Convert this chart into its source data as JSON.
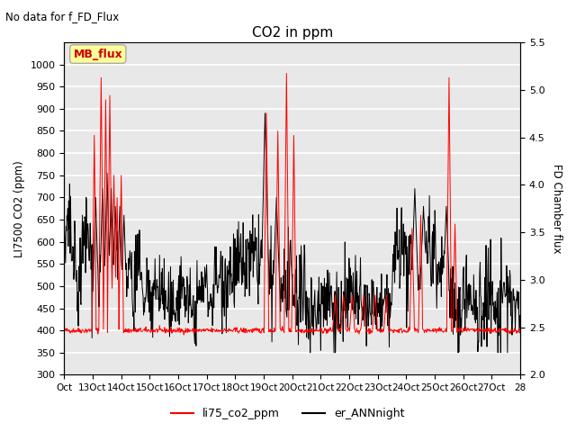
{
  "title": "CO2 in ppm",
  "subtitle": "No data for f_FD_Flux",
  "ylabel_left": "LI7500 CO2 (ppm)",
  "ylabel_right": "FD Chamber flux",
  "ylim_left": [
    300,
    1050
  ],
  "ylim_right": [
    2.0,
    5.5
  ],
  "yticks_left": [
    300,
    350,
    400,
    450,
    500,
    550,
    600,
    650,
    700,
    750,
    800,
    850,
    900,
    950,
    1000
  ],
  "xtick_labels": [
    "Oct",
    "13Oct",
    "14Oct",
    "15Oct",
    "16Oct",
    "17Oct",
    "18Oct",
    "19Oct",
    "20Oct",
    "21Oct",
    "22Oct",
    "23Oct",
    "24Oct",
    "25Oct",
    "26Oct",
    "27Oct",
    "28"
  ],
  "legend_labels": [
    "li75_co2_ppm",
    "er_ANNnight"
  ],
  "legend_colors": [
    "red",
    "black"
  ],
  "mb_flux_box_color": "#ffff99",
  "mb_flux_text_color": "#cc0000",
  "line_color_co2": "red",
  "line_color_er": "black",
  "background_color": "#e8e8e8",
  "grid_color": "white",
  "seed": 42
}
